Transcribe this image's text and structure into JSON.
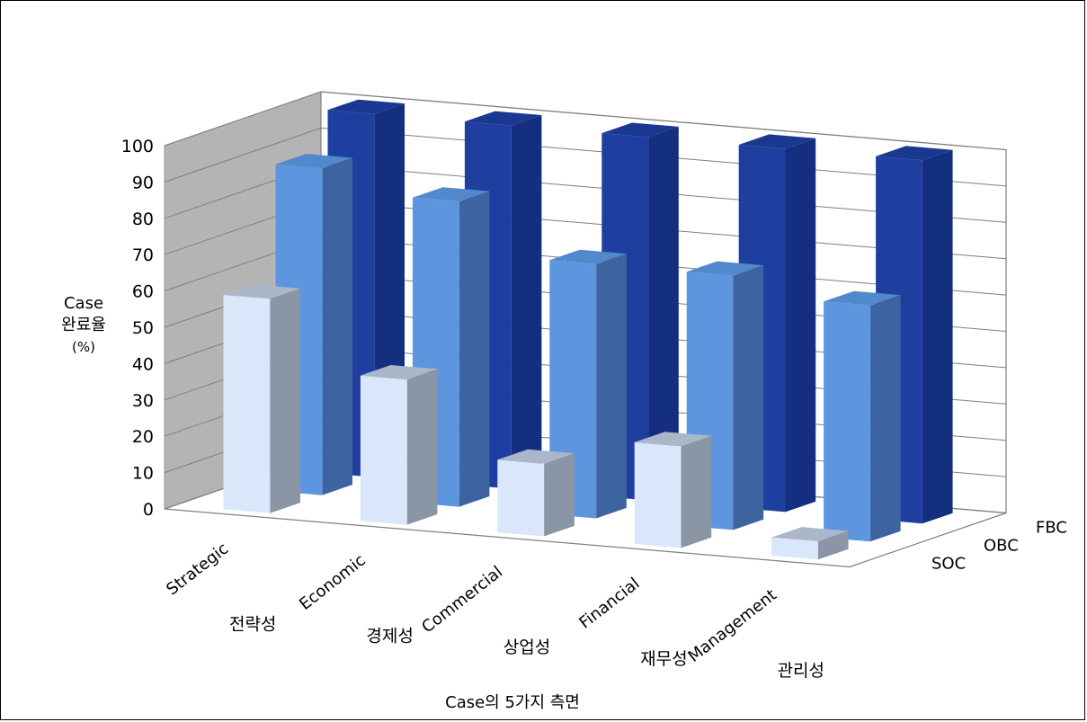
{
  "chart_data": {
    "type": "bar",
    "subtype": "3d-clustered-depth",
    "title": "",
    "ylabel_lines": [
      "Case",
      "완료율",
      "(%)"
    ],
    "xlabel": "Case의 5가지 측면",
    "ylim": [
      0,
      100
    ],
    "y_ticks": [
      "0",
      "10",
      "20",
      "30",
      "40",
      "50",
      "60",
      "70",
      "80",
      "90",
      "100"
    ],
    "grid": true,
    "legend": "none",
    "categories": [
      {
        "en": "Strategic",
        "ko": "전략성"
      },
      {
        "en": "Economic",
        "ko": "경제성"
      },
      {
        "en": "Commercial",
        "ko": "상업성"
      },
      {
        "en": "Financial",
        "ko": "재무성"
      },
      {
        "en": "Management",
        "ko": "관리성"
      }
    ],
    "series": [
      {
        "name": "SOC",
        "color": "#dae7fa",
        "side": "#8a96a6",
        "top": "#aab7c9",
        "values": [
          59,
          40,
          20,
          28,
          5
        ]
      },
      {
        "name": "OBC",
        "color": "#5d96de",
        "side": "#3d64a0",
        "top": "#5288cc",
        "values": [
          90,
          84,
          70,
          70,
          65
        ]
      },
      {
        "name": "FBC",
        "color": "#1f3fa0",
        "side": "#142e80",
        "top": "#1a3890",
        "values": [
          100,
          100,
          100,
          100,
          100
        ]
      }
    ]
  }
}
